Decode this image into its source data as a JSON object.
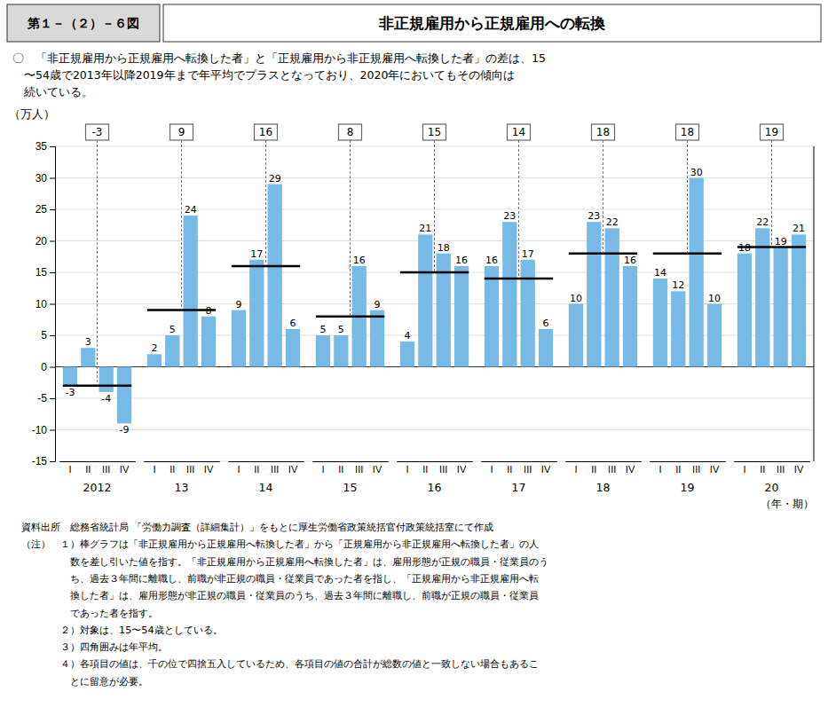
{
  "chart_data": {
    "type": "bar",
    "title_prefix": "第１－（２）－６図",
    "title": "非正規雇用から正規雇用への転換",
    "subtitle": [
      "〇　「非正規雇用から正規雇用へ転換した者」と「正規雇用から非正規雇用へ転換した者」の差は、15",
      "　〜54歳で2013年以降2019年まで年平均でプラスとなっており、2020年においてもその傾向は",
      "　続いている。"
    ],
    "y_label": "（万人）",
    "x_label": "（年・期）",
    "color": "#78BAE6",
    "groups": [
      {
        "label": "2012",
        "categories": [
          "I",
          "II",
          "III",
          "IV"
        ],
        "values": [
          -3,
          3,
          -4,
          -9
        ],
        "average": -3
      },
      {
        "label": "13",
        "categories": [
          "I",
          "II",
          "III",
          "IV"
        ],
        "values": [
          2,
          5,
          24,
          8
        ],
        "average": 9
      },
      {
        "label": "14",
        "categories": [
          "I",
          "II",
          "III",
          "IV"
        ],
        "values": [
          9,
          17,
          29,
          6
        ],
        "average": 16
      },
      {
        "label": "15",
        "categories": [
          "I",
          "II",
          "III",
          "IV"
        ],
        "values": [
          5,
          5,
          16,
          9
        ],
        "average": 8
      },
      {
        "label": "16",
        "categories": [
          "I",
          "II",
          "III",
          "IV"
        ],
        "values": [
          4,
          21,
          18,
          16
        ],
        "average": 15
      },
      {
        "label": "17",
        "categories": [
          "I",
          "II",
          "III",
          "IV"
        ],
        "values": [
          16,
          23,
          17,
          6
        ],
        "average": 14
      },
      {
        "label": "18",
        "categories": [
          "I",
          "II",
          "III",
          "IV"
        ],
        "values": [
          10,
          23,
          22,
          16
        ],
        "average": 18
      },
      {
        "label": "19",
        "categories": [
          "I",
          "II",
          "III",
          "IV"
        ],
        "values": [
          14,
          12,
          30,
          10
        ],
        "average": 18
      },
      {
        "label": "20",
        "categories": [
          "I",
          "II",
          "III",
          "IV"
        ],
        "values": [
          18,
          22,
          19,
          21
        ],
        "average": 19
      }
    ],
    "ylim": [
      -15,
      35
    ],
    "yticks": [
      -15,
      -10,
      -5,
      0,
      5,
      10,
      15,
      20,
      25,
      30,
      35
    ],
    "grid": true,
    "data_labels": true,
    "notes": [
      "資料出所　総務省統計局 「労働力調査（詳細集計）」をもとに厚生労働省政策統括官付政策統括室にて作成",
      "（注）　１）棒グラフは「非正規雇用から正規雇用へ転換した者」から「正規雇用から非正規雇用へ転換した者」の人",
      "　　　　　数を差し引いた値を指す。「非正規雇用から正規雇用へ転換した者」は、雇用形態が正規の職員・従業員のう",
      "　　　　　ち、過去３年間に離職し、前職が非正規の職員・従業員であった者を指し、「正規雇用から非正規雇用へ転",
      "　　　　　換した者」は、雇用形態が非正規の職員・従業員のうち、過去３年間に離職し、前職が正規の職員・従業員",
      "　　　　　であった者を指す。",
      "　　　　２）対象は、15〜54歳としている。",
      "　　　　３）四角囲みは年平均。",
      "　　　　４）各項目の値は、千の位で四捨五入しているため、各項目の値の合計が総数の値と一致しない場合もあるこ",
      "　　　　　とに留意が必要。"
    ]
  }
}
